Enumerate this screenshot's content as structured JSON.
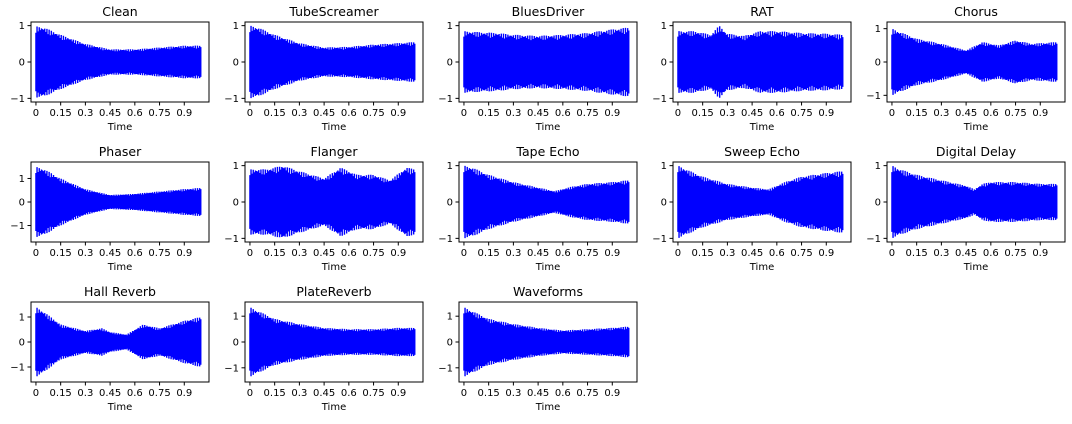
{
  "page": {
    "background": "#ffffff",
    "waveform_color": "#0000ff"
  },
  "chart_data": [
    {
      "type": "line",
      "title": "Clean",
      "xlabel": "Time",
      "ylabel": "",
      "xlim": [
        -0.03,
        1.05
      ],
      "ylim": [
        -1.1,
        1.1
      ],
      "xticks": [
        "0",
        "0.15",
        "0.3",
        "0.45",
        "0.6",
        "0.75",
        "0.9"
      ],
      "yticks": [
        "-1",
        "0",
        "1"
      ],
      "envelope": {
        "t": [
          0,
          0.05,
          0.15,
          0.3,
          0.45,
          0.6,
          0.75,
          0.9,
          1.0
        ],
        "amp": [
          0.98,
          0.95,
          0.75,
          0.5,
          0.35,
          0.35,
          0.4,
          0.45,
          0.45
        ]
      }
    },
    {
      "type": "line",
      "title": "TubeScreamer",
      "xlabel": "Time",
      "ylabel": "",
      "xlim": [
        -0.03,
        1.05
      ],
      "ylim": [
        -1.1,
        1.1
      ],
      "xticks": [
        "0",
        "0.15",
        "0.3",
        "0.45",
        "0.6",
        "0.75",
        "0.9"
      ],
      "yticks": [
        "-1",
        "0",
        "1"
      ],
      "envelope": {
        "t": [
          0,
          0.05,
          0.15,
          0.3,
          0.45,
          0.6,
          0.75,
          0.9,
          1.0
        ],
        "amp": [
          1.0,
          0.95,
          0.75,
          0.52,
          0.4,
          0.42,
          0.48,
          0.52,
          0.55
        ]
      }
    },
    {
      "type": "line",
      "title": "BluesDriver",
      "xlabel": "Time",
      "ylabel": "",
      "xlim": [
        -0.03,
        1.05
      ],
      "ylim": [
        -1.1,
        1.1
      ],
      "xticks": [
        "0",
        "0.15",
        "0.3",
        "0.45",
        "0.6",
        "0.75",
        "0.9"
      ],
      "yticks": [
        "-1",
        "0",
        "1"
      ],
      "envelope": {
        "t": [
          0,
          0.1,
          0.2,
          0.3,
          0.45,
          0.6,
          0.75,
          0.9,
          1.0
        ],
        "amp": [
          0.85,
          0.82,
          0.8,
          0.75,
          0.72,
          0.75,
          0.8,
          0.9,
          0.95
        ]
      }
    },
    {
      "type": "line",
      "title": "RAT",
      "xlabel": "Time",
      "ylabel": "",
      "xlim": [
        -0.03,
        1.05
      ],
      "ylim": [
        -1.1,
        1.1
      ],
      "xticks": [
        "0",
        "0.15",
        "0.3",
        "0.45",
        "0.6",
        "0.75",
        "0.9"
      ],
      "yticks": [
        "-1",
        "0",
        "1"
      ],
      "envelope": {
        "t": [
          0,
          0.1,
          0.2,
          0.25,
          0.3,
          0.4,
          0.5,
          0.6,
          0.75,
          0.9,
          1.0
        ],
        "amp": [
          0.85,
          0.85,
          0.75,
          1.0,
          0.78,
          0.72,
          0.85,
          0.85,
          0.8,
          0.78,
          0.75
        ]
      }
    },
    {
      "type": "line",
      "title": "Chorus",
      "xlabel": "Time",
      "ylabel": "",
      "xlim": [
        -0.03,
        1.05
      ],
      "ylim": [
        -1.2,
        1.2
      ],
      "xticks": [
        "0",
        "0.15",
        "0.3",
        "0.45",
        "0.6",
        "0.75",
        "0.9"
      ],
      "yticks": [
        "-1",
        "0",
        "1"
      ],
      "envelope": {
        "t": [
          0,
          0.05,
          0.15,
          0.3,
          0.45,
          0.55,
          0.65,
          0.75,
          0.85,
          1.0
        ],
        "amp": [
          1.0,
          0.9,
          0.7,
          0.55,
          0.35,
          0.6,
          0.5,
          0.65,
          0.55,
          0.6
        ]
      }
    },
    {
      "type": "line",
      "title": "Phaser",
      "xlabel": "Time",
      "ylabel": "",
      "xlim": [
        -0.03,
        1.05
      ],
      "ylim": [
        -1.7,
        1.7
      ],
      "xticks": [
        "0",
        "0.15",
        "0.3",
        "0.45",
        "0.6",
        "0.75",
        "0.9"
      ],
      "yticks": [
        "-1",
        "0",
        "1"
      ],
      "envelope": {
        "t": [
          0,
          0.05,
          0.15,
          0.3,
          0.45,
          0.6,
          0.75,
          0.9,
          1.0
        ],
        "amp": [
          1.5,
          1.4,
          1.0,
          0.55,
          0.3,
          0.35,
          0.45,
          0.55,
          0.6
        ]
      }
    },
    {
      "type": "line",
      "title": "Flanger",
      "xlabel": "Time",
      "ylabel": "",
      "xlim": [
        -0.03,
        1.05
      ],
      "ylim": [
        -1.1,
        1.1
      ],
      "xticks": [
        "0",
        "0.15",
        "0.3",
        "0.45",
        "0.6",
        "0.75",
        "0.9"
      ],
      "yticks": [
        "-1",
        "0",
        "1"
      ],
      "envelope": {
        "t": [
          0,
          0.1,
          0.2,
          0.3,
          0.45,
          0.55,
          0.65,
          0.75,
          0.85,
          0.95,
          1.0
        ],
        "amp": [
          0.9,
          0.9,
          1.0,
          0.85,
          0.65,
          0.95,
          0.75,
          0.75,
          0.6,
          0.95,
          0.9
        ]
      }
    },
    {
      "type": "line",
      "title": "Tape Echo",
      "xlabel": "Time",
      "ylabel": "",
      "xlim": [
        -0.03,
        1.05
      ],
      "ylim": [
        -1.1,
        1.1
      ],
      "xticks": [
        "0",
        "0.15",
        "0.3",
        "0.45",
        "0.6",
        "0.75",
        "0.9"
      ],
      "yticks": [
        "-1",
        "0",
        "1"
      ],
      "envelope": {
        "t": [
          0,
          0.05,
          0.15,
          0.3,
          0.45,
          0.55,
          0.65,
          0.75,
          0.9,
          1.0
        ],
        "amp": [
          1.0,
          0.95,
          0.75,
          0.55,
          0.4,
          0.3,
          0.42,
          0.5,
          0.55,
          0.6
        ]
      }
    },
    {
      "type": "line",
      "title": "Sweep Echo",
      "xlabel": "Time",
      "ylabel": "",
      "xlim": [
        -0.03,
        1.05
      ],
      "ylim": [
        -1.1,
        1.1
      ],
      "xticks": [
        "0",
        "0.15",
        "0.3",
        "0.45",
        "0.6",
        "0.75",
        "0.9"
      ],
      "yticks": [
        "-1",
        "0",
        "1"
      ],
      "envelope": {
        "t": [
          0,
          0.05,
          0.15,
          0.3,
          0.45,
          0.55,
          0.65,
          0.75,
          0.9,
          1.0
        ],
        "amp": [
          1.0,
          0.9,
          0.7,
          0.5,
          0.4,
          0.35,
          0.55,
          0.7,
          0.8,
          0.85
        ]
      }
    },
    {
      "type": "line",
      "title": "Digital Delay",
      "xlabel": "Time",
      "ylabel": "",
      "xlim": [
        -0.03,
        1.05
      ],
      "ylim": [
        -1.1,
        1.1
      ],
      "xticks": [
        "0",
        "0.15",
        "0.3",
        "0.45",
        "0.6",
        "0.75",
        "0.9"
      ],
      "yticks": [
        "-1",
        "0",
        "1"
      ],
      "envelope": {
        "t": [
          0,
          0.05,
          0.15,
          0.3,
          0.45,
          0.5,
          0.55,
          0.6,
          0.75,
          0.9,
          1.0
        ],
        "amp": [
          1.0,
          0.9,
          0.75,
          0.6,
          0.45,
          0.35,
          0.5,
          0.55,
          0.55,
          0.5,
          0.5
        ]
      }
    },
    {
      "type": "line",
      "title": "Hall Reverb",
      "xlabel": "Time",
      "ylabel": "",
      "xlim": [
        -0.03,
        1.05
      ],
      "ylim": [
        -1.6,
        1.6
      ],
      "xticks": [
        "0",
        "0.15",
        "0.3",
        "0.45",
        "0.6",
        "0.75",
        "0.9"
      ],
      "yticks": [
        "-1",
        "0",
        "1"
      ],
      "envelope": {
        "t": [
          0,
          0.05,
          0.15,
          0.3,
          0.4,
          0.45,
          0.55,
          0.65,
          0.75,
          0.9,
          1.0
        ],
        "amp": [
          1.4,
          1.2,
          0.7,
          0.45,
          0.55,
          0.4,
          0.3,
          0.7,
          0.55,
          0.85,
          1.0
        ]
      }
    },
    {
      "type": "line",
      "title": "PlateReverb",
      "xlabel": "Time",
      "ylabel": "",
      "xlim": [
        -0.03,
        1.05
      ],
      "ylim": [
        -1.55,
        1.55
      ],
      "xticks": [
        "0",
        "0.15",
        "0.3",
        "0.45",
        "0.6",
        "0.75",
        "0.9"
      ],
      "yticks": [
        "-1",
        "0",
        "1"
      ],
      "envelope": {
        "t": [
          0,
          0.05,
          0.15,
          0.3,
          0.45,
          0.6,
          0.75,
          0.9,
          1.0
        ],
        "amp": [
          1.35,
          1.2,
          0.9,
          0.7,
          0.55,
          0.5,
          0.5,
          0.55,
          0.55
        ]
      }
    },
    {
      "type": "line",
      "title": "Waveforms",
      "xlabel": "Time",
      "ylabel": "",
      "xlim": [
        -0.03,
        1.05
      ],
      "ylim": [
        -1.55,
        1.55
      ],
      "xticks": [
        "0",
        "0.15",
        "0.3",
        "0.45",
        "0.6",
        "0.75",
        "0.9"
      ],
      "yticks": [
        "-1",
        "0",
        "1"
      ],
      "envelope": {
        "t": [
          0,
          0.05,
          0.15,
          0.3,
          0.45,
          0.6,
          0.75,
          0.9,
          1.0
        ],
        "amp": [
          1.35,
          1.2,
          0.9,
          0.7,
          0.55,
          0.45,
          0.5,
          0.55,
          0.6
        ]
      }
    }
  ]
}
